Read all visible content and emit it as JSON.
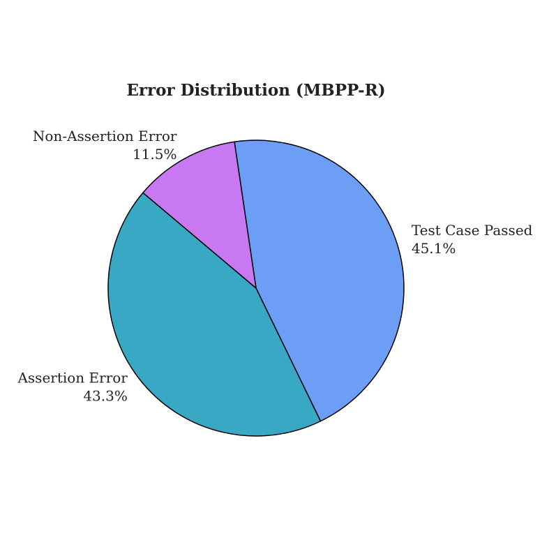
{
  "chart_data": {
    "type": "pie",
    "title": "Error Distribution (MBPP-R)",
    "categories": [
      "Test Case Passed",
      "Assertion Error",
      "Non-Assertion Error"
    ],
    "values": [
      45.1,
      43.3,
      11.5
    ],
    "value_labels": [
      "45.1%",
      "43.3%",
      "11.5%"
    ],
    "colors": [
      "#6d9ef5",
      "#39a8c4",
      "#c879f2"
    ]
  }
}
